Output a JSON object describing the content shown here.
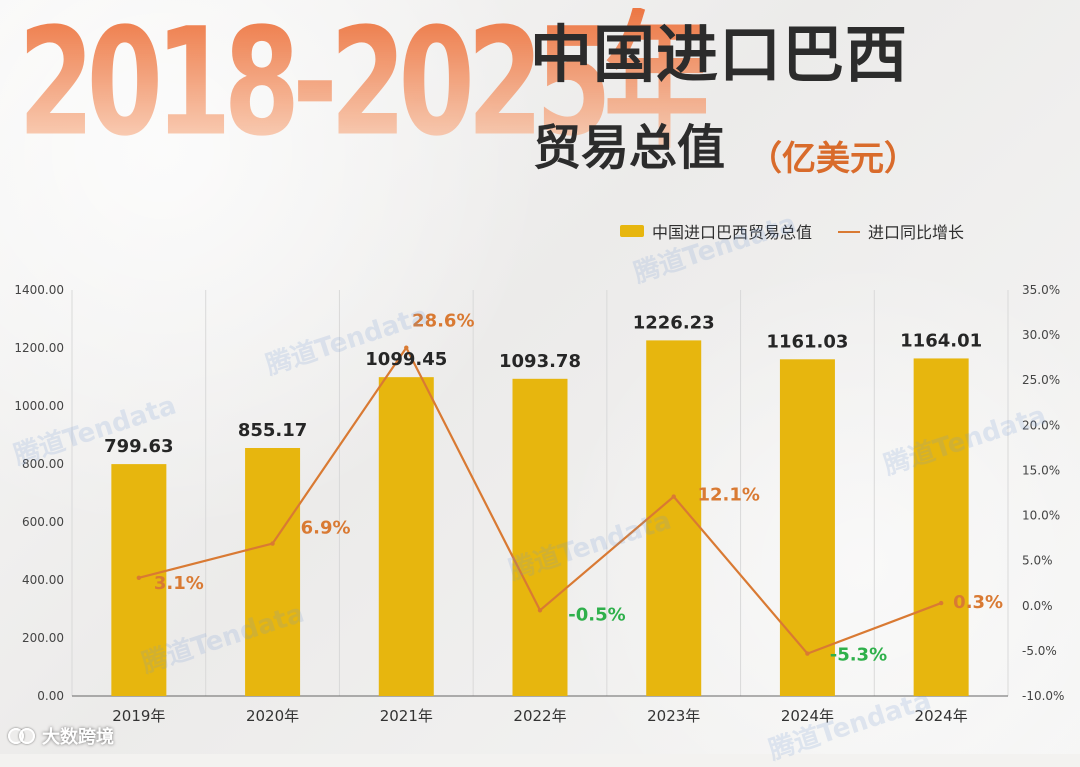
{
  "header": {
    "years_banner": "2018-2025年",
    "title_line_1": "中国进口巴西",
    "title_line_2": "贸易总值",
    "unit": "（亿美元）"
  },
  "legend": {
    "bar_label": "中国进口巴西贸易总值",
    "line_label": "进口同比增长"
  },
  "watermark_text": "腾道Tendata",
  "footer": {
    "brand": "大数跨境"
  },
  "chart_data": {
    "type": "bar+line",
    "title": "2018-2025年中国进口巴西贸易总值（亿美元）",
    "categories": [
      "2019年",
      "2020年",
      "2021年",
      "2022年",
      "2023年",
      "2024年",
      "2024年"
    ],
    "series": [
      {
        "name": "中国进口巴西贸易总值",
        "type": "bar",
        "axis": "left",
        "values": [
          799.63,
          855.17,
          1099.45,
          1093.78,
          1226.23,
          1161.03,
          1164.01
        ],
        "labels": [
          "799.63",
          "855.17",
          "1099.45",
          "1093.78",
          "1226.23",
          "1161.03",
          "1164.01"
        ]
      },
      {
        "name": "进口同比增长",
        "type": "line",
        "axis": "right",
        "values": [
          3.1,
          6.9,
          28.6,
          -0.5,
          12.1,
          -5.3,
          0.3
        ],
        "labels": [
          "3.1%",
          "6.9%",
          "28.6%",
          "-0.5%",
          "12.1%",
          "-5.3%",
          "0.3%"
        ]
      }
    ],
    "left_axis": {
      "min": 0,
      "max": 1400,
      "ticks": [
        "0.00",
        "200.00",
        "400.00",
        "600.00",
        "800.00",
        "1000.00",
        "1200.00",
        "1400.00"
      ]
    },
    "right_axis": {
      "min": -10,
      "max": 35,
      "ticks": [
        "-10.0%",
        "-5.0%",
        "0.0%",
        "5.0%",
        "10.0%",
        "15.0%",
        "20.0%",
        "25.0%",
        "30.0%",
        "35.0%"
      ]
    },
    "grid": "vertical",
    "legend_position": "top-right",
    "colors": {
      "bar": "#e7b60e",
      "line": "#d97a33",
      "positive_label": "#d97a33",
      "negative_label": "#2fb04b",
      "value_label": "#262626",
      "axis_text": "#444444",
      "grid": "#d9d9d9",
      "axis_line": "#666666"
    }
  }
}
